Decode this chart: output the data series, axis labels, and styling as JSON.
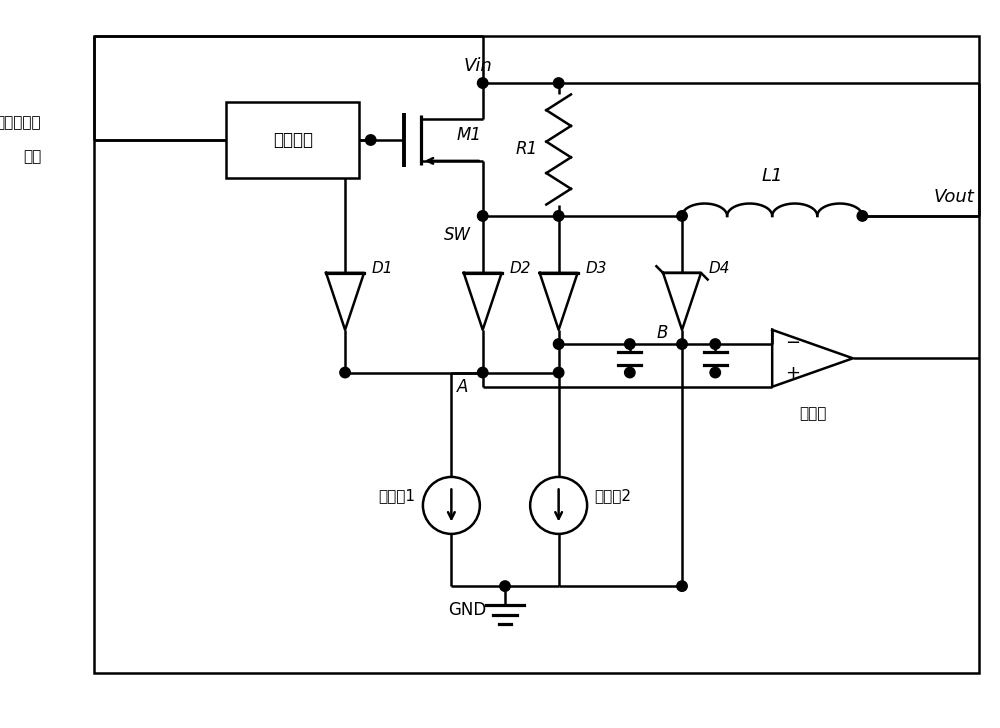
{
  "bg_color": "#ffffff",
  "line_color": "#000000",
  "lw": 1.8,
  "labels": {
    "vin": "Vin",
    "vout": "Vout",
    "sw": "SW",
    "gnd": "GND",
    "m1": "M1",
    "r1": "R1",
    "l1": "L1",
    "d1": "D1",
    "d2": "D2",
    "d3": "D3",
    "d4": "D4",
    "a": "A",
    "b": "B",
    "driver": "驱动电路",
    "error_signal_1": "误差放大器",
    "error_signal_2": "信号",
    "cm1": "电流镜1",
    "cm2": "电流镜2",
    "comparator": "比较器"
  }
}
